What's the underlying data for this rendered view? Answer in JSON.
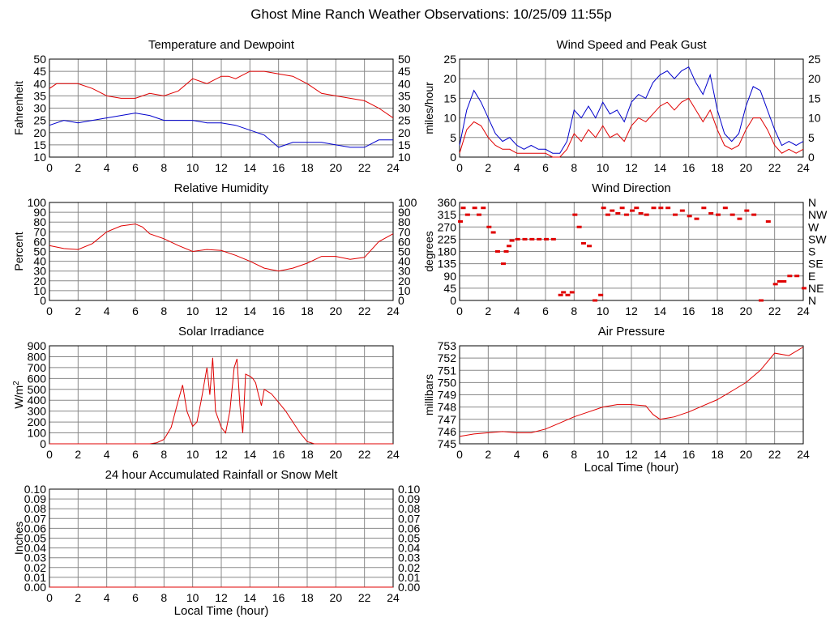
{
  "page_title": "Ghost Mine Ranch Weather Observations: 10/25/09 11:55p",
  "colors": {
    "red": "#e00000",
    "blue": "#0000cc",
    "grid": "#888888"
  },
  "chart_data": [
    {
      "id": "temperature",
      "type": "line",
      "title": "Temperature and Dewpoint",
      "ylabel": "Fahrenheit",
      "xlabel": "",
      "xlim": [
        0,
        24
      ],
      "ylim": [
        10,
        50
      ],
      "xticks": [
        "0",
        "2",
        "4",
        "6",
        "8",
        "10",
        "12",
        "14",
        "16",
        "18",
        "20",
        "22",
        "24"
      ],
      "yticks_left": [
        "10",
        "15",
        "20",
        "25",
        "30",
        "35",
        "40",
        "45",
        "50"
      ],
      "yticks_right": [
        "10",
        "15",
        "20",
        "25",
        "30",
        "35",
        "40",
        "45",
        "50"
      ],
      "grid": true,
      "series": [
        {
          "color": "red",
          "x": [
            0,
            0.5,
            1,
            2,
            3,
            4,
            5,
            6,
            7,
            8,
            9,
            10,
            11,
            12,
            12.5,
            13,
            14,
            15,
            16,
            17,
            18,
            19,
            20,
            21,
            22,
            23,
            24
          ],
          "y": [
            38,
            40,
            40,
            40,
            38,
            35,
            34,
            34,
            36,
            35,
            37,
            42,
            40,
            43,
            43,
            42,
            45,
            45,
            44,
            43,
            40,
            36,
            35,
            34,
            33,
            30,
            26
          ]
        },
        {
          "color": "blue",
          "x": [
            0,
            1,
            2,
            3,
            4,
            5,
            6,
            7,
            8,
            9,
            10,
            11,
            12,
            13,
            14,
            15,
            16,
            17,
            18,
            19,
            20,
            21,
            22,
            23,
            24
          ],
          "y": [
            23,
            25,
            24,
            25,
            26,
            27,
            28,
            27,
            25,
            25,
            25,
            24,
            24,
            23,
            21,
            19,
            14,
            16,
            16,
            16,
            15,
            14,
            14,
            17,
            17
          ]
        }
      ]
    },
    {
      "id": "wind_speed",
      "type": "line",
      "title": "Wind Speed and Peak Gust",
      "ylabel": "miles/hour",
      "xlabel": "",
      "xlim": [
        0,
        24
      ],
      "ylim": [
        0,
        25
      ],
      "xticks": [
        "0",
        "2",
        "4",
        "6",
        "8",
        "10",
        "12",
        "14",
        "16",
        "18",
        "20",
        "22",
        "24"
      ],
      "yticks_left": [
        "0",
        "5",
        "10",
        "15",
        "20",
        "25"
      ],
      "yticks_right": [
        "0",
        "5",
        "10",
        "15",
        "20",
        "25"
      ],
      "grid": true,
      "series": [
        {
          "color": "blue",
          "x": [
            0,
            0.5,
            1,
            1.5,
            2,
            2.5,
            3,
            3.5,
            4,
            4.5,
            5,
            5.5,
            6,
            6.5,
            7,
            7.5,
            8,
            8.5,
            9,
            9.5,
            10,
            10.5,
            11,
            11.5,
            12,
            12.5,
            13,
            13.5,
            14,
            14.5,
            15,
            15.5,
            16,
            16.5,
            17,
            17.5,
            18,
            18.5,
            19,
            19.5,
            20,
            20.5,
            21,
            21.5,
            22,
            22.5,
            23,
            23.5,
            24
          ],
          "y": [
            3,
            12,
            17,
            14,
            10,
            6,
            4,
            5,
            3,
            2,
            3,
            2,
            2,
            1,
            1,
            4,
            12,
            10,
            13,
            10,
            14,
            11,
            12,
            9,
            14,
            16,
            15,
            19,
            21,
            22,
            20,
            22,
            23,
            19,
            16,
            21,
            12,
            6,
            4,
            6,
            13,
            18,
            17,
            12,
            7,
            3,
            4,
            3,
            4
          ]
        },
        {
          "color": "red",
          "x": [
            0,
            0.5,
            1,
            1.5,
            2,
            2.5,
            3,
            3.5,
            4,
            4.5,
            5,
            5.5,
            6,
            6.5,
            7,
            7.5,
            8,
            8.5,
            9,
            9.5,
            10,
            10.5,
            11,
            11.5,
            12,
            12.5,
            13,
            13.5,
            14,
            14.5,
            15,
            15.5,
            16,
            16.5,
            17,
            17.5,
            18,
            18.5,
            19,
            19.5,
            20,
            20.5,
            21,
            21.5,
            22,
            22.5,
            23,
            23.5,
            24
          ],
          "y": [
            1,
            7,
            9,
            8,
            5,
            3,
            2,
            2,
            1,
            1,
            1,
            1,
            1,
            0,
            0,
            2,
            6,
            4,
            7,
            5,
            8,
            5,
            6,
            4,
            8,
            10,
            9,
            11,
            13,
            14,
            12,
            14,
            15,
            12,
            9,
            12,
            7,
            3,
            2,
            3,
            7,
            10,
            10,
            7,
            3,
            1,
            2,
            1,
            2
          ]
        }
      ]
    },
    {
      "id": "humidity",
      "type": "line",
      "title": "Relative Humidity",
      "ylabel": "Percent",
      "xlabel": "",
      "xlim": [
        0,
        24
      ],
      "ylim": [
        0,
        100
      ],
      "xticks": [
        "0",
        "2",
        "4",
        "6",
        "8",
        "10",
        "12",
        "14",
        "16",
        "18",
        "20",
        "22",
        "24"
      ],
      "yticks_left": [
        "0",
        "10",
        "20",
        "30",
        "40",
        "50",
        "60",
        "70",
        "80",
        "90",
        "100"
      ],
      "yticks_right": [
        "0",
        "10",
        "20",
        "30",
        "40",
        "50",
        "60",
        "70",
        "80",
        "90",
        "100"
      ],
      "grid": true,
      "series": [
        {
          "color": "red",
          "x": [
            0,
            1,
            2,
            3,
            4,
            5,
            6,
            6.5,
            7,
            8,
            9,
            10,
            11,
            12,
            13,
            14,
            15,
            16,
            17,
            18,
            19,
            20,
            21,
            22,
            23,
            24
          ],
          "y": [
            56,
            53,
            52,
            58,
            70,
            76,
            78,
            75,
            68,
            63,
            56,
            50,
            52,
            51,
            46,
            40,
            33,
            30,
            33,
            38,
            45,
            45,
            42,
            44,
            60,
            68
          ]
        }
      ]
    },
    {
      "id": "wind_direction",
      "type": "scatter",
      "title": "Wind Direction",
      "ylabel": "degrees",
      "xlabel": "",
      "xlim": [
        0,
        24
      ],
      "ylim": [
        0,
        360
      ],
      "xticks": [
        "0",
        "2",
        "4",
        "6",
        "8",
        "10",
        "12",
        "14",
        "16",
        "18",
        "20",
        "22",
        "24"
      ],
      "yticks_left": [
        "0",
        "45",
        "90",
        "135",
        "180",
        "225",
        "270",
        "315",
        "360"
      ],
      "yticks_right": [
        "N",
        "NE",
        "E",
        "SE",
        "S",
        "SW",
        "W",
        "NW",
        "N"
      ],
      "grid": true,
      "series": [
        {
          "color": "red",
          "x": [
            0,
            0.2,
            0.5,
            1,
            1.3,
            1.6,
            2,
            2.3,
            2.6,
            3,
            3.2,
            3.4,
            3.6,
            4,
            4.5,
            5,
            5.5,
            6,
            6.5,
            7,
            7.2,
            7.5,
            7.8,
            8,
            8.3,
            8.6,
            9,
            9.4,
            9.8,
            10,
            10.3,
            10.6,
            11,
            11.3,
            11.6,
            12,
            12.3,
            12.6,
            13,
            13.5,
            14,
            14.5,
            15,
            15.5,
            16,
            16.5,
            17,
            17.5,
            18,
            18.5,
            19,
            19.5,
            20,
            20.5,
            21,
            21.5,
            22,
            22.3,
            22.6,
            23,
            23.5,
            24
          ],
          "y": [
            290,
            340,
            315,
            340,
            315,
            340,
            270,
            250,
            180,
            135,
            180,
            200,
            220,
            225,
            225,
            225,
            225,
            225,
            225,
            20,
            30,
            20,
            30,
            315,
            270,
            210,
            200,
            0,
            20,
            340,
            315,
            330,
            320,
            340,
            315,
            330,
            340,
            320,
            315,
            340,
            340,
            340,
            315,
            330,
            310,
            300,
            340,
            320,
            315,
            340,
            315,
            300,
            330,
            315,
            0,
            290,
            60,
            70,
            70,
            90,
            90,
            45
          ]
        }
      ]
    },
    {
      "id": "solar",
      "type": "line",
      "title": "Solar Irradiance",
      "ylabel": "W/m2",
      "xlabel": "",
      "xlim": [
        0,
        24
      ],
      "ylim": [
        0,
        900
      ],
      "xticks": [
        "0",
        "2",
        "4",
        "6",
        "8",
        "10",
        "12",
        "14",
        "16",
        "18",
        "20",
        "22",
        "24"
      ],
      "yticks_left": [
        "0",
        "100",
        "200",
        "300",
        "400",
        "500",
        "600",
        "700",
        "800",
        "900"
      ],
      "grid": true,
      "series": [
        {
          "color": "red",
          "x": [
            0,
            7,
            7.5,
            8,
            8.5,
            9,
            9.3,
            9.6,
            10,
            10.3,
            10.6,
            11,
            11.2,
            11.4,
            11.6,
            12,
            12.3,
            12.6,
            12.9,
            13.1,
            13.3,
            13.5,
            13.7,
            14,
            14.2,
            14.4,
            14.6,
            14.8,
            15,
            15.5,
            16,
            16.5,
            17,
            17.5,
            18,
            18.5,
            24
          ],
          "y": [
            0,
            0,
            10,
            40,
            150,
            400,
            540,
            300,
            160,
            200,
            400,
            700,
            450,
            790,
            300,
            150,
            100,
            300,
            700,
            780,
            350,
            100,
            640,
            620,
            600,
            560,
            450,
            350,
            500,
            460,
            380,
            300,
            200,
            100,
            20,
            0,
            0
          ]
        }
      ]
    },
    {
      "id": "pressure",
      "type": "line",
      "title": "Air Pressure",
      "ylabel": "millibars",
      "xlabel": "Local Time (hour)",
      "xlim": [
        0,
        24
      ],
      "ylim": [
        745,
        753
      ],
      "xticks": [
        "0",
        "2",
        "4",
        "6",
        "8",
        "10",
        "12",
        "14",
        "16",
        "18",
        "20",
        "22",
        "24"
      ],
      "yticks_left": [
        "745",
        "746",
        "747",
        "748",
        "749",
        "750",
        "751",
        "752",
        "753"
      ],
      "grid": true,
      "series": [
        {
          "color": "red",
          "x": [
            0,
            1,
            2,
            3,
            4,
            5,
            6,
            7,
            8,
            9,
            10,
            11,
            12,
            13,
            13.5,
            14,
            15,
            16,
            17,
            18,
            19,
            20,
            21,
            22,
            23,
            24
          ],
          "y": [
            745.6,
            745.8,
            745.9,
            746.0,
            745.9,
            745.9,
            746.2,
            746.7,
            747.2,
            747.6,
            748.0,
            748.2,
            748.2,
            748.1,
            747.4,
            747.0,
            747.2,
            747.6,
            748.1,
            748.6,
            749.3,
            750.0,
            751.0,
            752.4,
            752.2,
            752.9
          ]
        }
      ]
    },
    {
      "id": "rainfall",
      "type": "line",
      "title": "24 hour Accumulated Rainfall or Snow Melt",
      "ylabel": "Inches",
      "xlabel": "Local Time (hour)",
      "xlim": [
        0,
        24
      ],
      "ylim": [
        0,
        0.1
      ],
      "xticks": [
        "0",
        "2",
        "4",
        "6",
        "8",
        "10",
        "12",
        "14",
        "16",
        "18",
        "20",
        "22",
        "24"
      ],
      "yticks_left": [
        "0.00",
        "0.01",
        "0.02",
        "0.03",
        "0.04",
        "0.05",
        "0.06",
        "0.07",
        "0.08",
        "0.09",
        "0.10"
      ],
      "yticks_right": [
        "0.00",
        "0.01",
        "0.02",
        "0.03",
        "0.04",
        "0.05",
        "0.06",
        "0.07",
        "0.08",
        "0.09",
        "0.10"
      ],
      "grid": true,
      "series": [
        {
          "color": "red",
          "x": [
            0,
            24
          ],
          "y": [
            0,
            0
          ]
        }
      ]
    }
  ]
}
